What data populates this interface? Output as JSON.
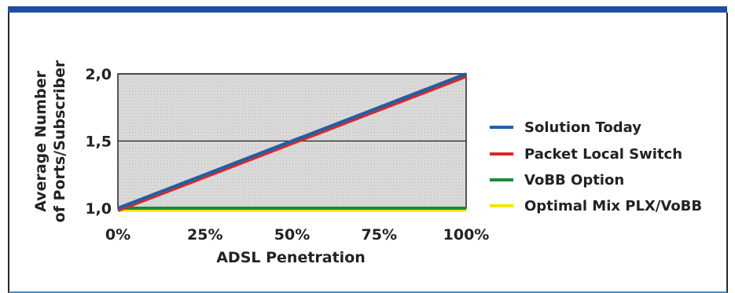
{
  "chart_data": {
    "type": "line",
    "xlabel": "ADSL Penetration",
    "ylabel_lines": [
      "Average Number",
      "of Ports/Subscriber"
    ],
    "x_ticks": [
      "0%",
      "25%",
      "50%",
      "75%",
      "100%"
    ],
    "y_ticks": [
      "1,0",
      "1,5",
      "2,0"
    ],
    "xlim": [
      0,
      100
    ],
    "ylim": [
      1.0,
      2.0
    ],
    "grid": "horizontal",
    "legend_position": "right",
    "series": [
      {
        "name": "Solution Today",
        "color": "#1f5fa8",
        "x": [
          0,
          100
        ],
        "y": [
          1.0,
          2.0
        ]
      },
      {
        "name": "Packet Local Switch",
        "color": "#d42a2a",
        "x": [
          0,
          100
        ],
        "y": [
          0.96,
          1.98
        ]
      },
      {
        "name": "VoBB Option",
        "color": "#1a8a3a",
        "x": [
          0,
          100
        ],
        "y": [
          1.0,
          1.0
        ]
      },
      {
        "name": "Optimal Mix PLX/VoBB",
        "color": "#f2e600",
        "x": [
          0,
          100
        ],
        "y": [
          0.985,
          0.985
        ]
      }
    ]
  }
}
